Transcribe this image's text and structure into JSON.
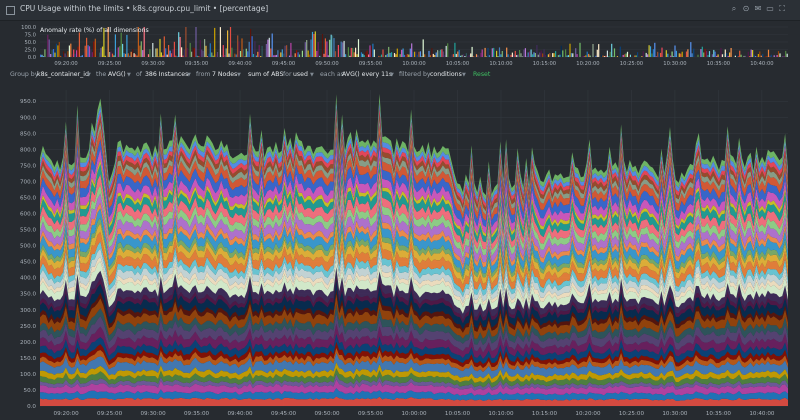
{
  "header": {
    "title": "CPU Usage within the limits • k8s.cgroup.cpu_limit • [percentage]",
    "icons": [
      "search-icon",
      "zoom-icon",
      "mail-icon",
      "container-icon",
      "fullscreen-icon"
    ]
  },
  "anomaly": {
    "label": "Anomaly rate (%) of all dimensions",
    "y_ticks": [
      "100.0",
      "75.0",
      "50.0",
      "25.0",
      "0.0"
    ]
  },
  "toolbar": {
    "group_by": "Group by",
    "group_value": "k8s_container_id",
    "the": "the",
    "agg": "AVG()",
    "of": "of",
    "instances": "386 Instances",
    "from": "from",
    "nodes": "7 Nodes",
    "sum_of": "sum of ABS",
    "for": "for",
    "used": "used",
    "each_as": "each as",
    "every": "AVG() every 11s",
    "filtered_by": "filtered by",
    "conditions": "conditions",
    "reset": "Reset"
  },
  "colors": {
    "background": "#272b30",
    "grid": "#353b41",
    "series": [
      "#e24d42",
      "#1f78c1",
      "#ba43a9",
      "#705da0",
      "#508642",
      "#cca300",
      "#447ebc",
      "#c15c17",
      "#890f02",
      "#0a437c",
      "#6d1f62",
      "#584477",
      "#2f575e",
      "#99440a",
      "#58140c",
      "#052b51",
      "#511749",
      "#3f2b5b",
      "#e0f9d7",
      "#fceaca",
      "#cfe1e2",
      "#6ed0e0",
      "#ef843c",
      "#eab839",
      "#7eb26d",
      "#3b9fd9",
      "#f9934e",
      "#b877d9",
      "#96d98d",
      "#ff7383",
      "#21a39a",
      "#d4c928",
      "#d65bc7",
      "#3a6bd6",
      "#e05c36",
      "#8fa68e",
      "#a04e2e",
      "#f2495c",
      "#5794f2",
      "#73bf69"
    ]
  },
  "chart_data": [
    {
      "type": "area",
      "stacked": true,
      "title": "",
      "xlabel": "",
      "ylabel": "",
      "y_ticks": [
        0,
        50,
        100,
        150,
        200,
        250,
        300,
        350,
        400,
        450,
        500,
        550,
        600,
        650,
        700,
        750,
        800,
        850,
        900,
        950
      ],
      "ylim": [
        0,
        985
      ],
      "x_ticks": [
        "09:20:00",
        "09:25:00",
        "09:30:00",
        "09:35:00",
        "09:40:00",
        "09:45:00",
        "09:50:00",
        "09:55:00",
        "10:00:00",
        "10:05:00",
        "10:10:00",
        "10:15:00",
        "10:20:00",
        "10:25:00",
        "10:30:00",
        "10:35:00",
        "10:40:00"
      ],
      "grid": true,
      "legend": "none",
      "stack_total_profile": {
        "x": [
          "09:17:00",
          "09:20:00",
          "09:23:00",
          "09:24:00",
          "09:25:00",
          "09:26:00",
          "09:30:00",
          "09:35:00",
          "09:40:00",
          "09:45:00",
          "09:50:00",
          "09:55:00",
          "10:00:00",
          "10:04:00",
          "10:05:00",
          "10:06:00",
          "10:10:00",
          "10:15:00",
          "10:20:00",
          "10:25:00",
          "10:30:00",
          "10:33:00",
          "10:35:00",
          "10:40:00",
          "10:43:00"
        ],
        "y": [
          780,
          760,
          800,
          960,
          700,
          820,
          800,
          820,
          790,
          810,
          800,
          820,
          800,
          810,
          660,
          700,
          690,
          720,
          740,
          760,
          700,
          780,
          760,
          780,
          770
        ]
      },
      "series_count": 40
    },
    {
      "type": "bar",
      "title": "Anomaly rate (%) of all dimensions",
      "y_ticks": [
        0,
        25,
        50,
        75,
        100
      ],
      "ylim": [
        0,
        100
      ],
      "x_ticks": [
        "09:20:00",
        "09:25:00",
        "09:30:00",
        "09:35:00",
        "09:40:00",
        "09:45:00",
        "09:50:00",
        "09:55:00",
        "10:00:00",
        "10:05:00",
        "10:10:00",
        "10:15:00",
        "10:20:00",
        "10:25:00",
        "10:30:00",
        "10:35:00",
        "10:40:00"
      ],
      "level_profile": {
        "x": [
          "09:17:00",
          "09:20:00",
          "09:25:00",
          "09:30:00",
          "09:35:00",
          "09:40:00",
          "09:45:00",
          "09:50:00",
          "09:55:00",
          "10:00:00",
          "10:05:00",
          "10:10:00",
          "10:15:00",
          "10:20:00",
          "10:25:00",
          "10:30:00",
          "10:35:00",
          "10:40:00",
          "10:43:00"
        ],
        "y": [
          30,
          45,
          60,
          55,
          65,
          60,
          55,
          45,
          35,
          25,
          30,
          25,
          20,
          25,
          20,
          25,
          20,
          15,
          15
        ]
      }
    }
  ]
}
